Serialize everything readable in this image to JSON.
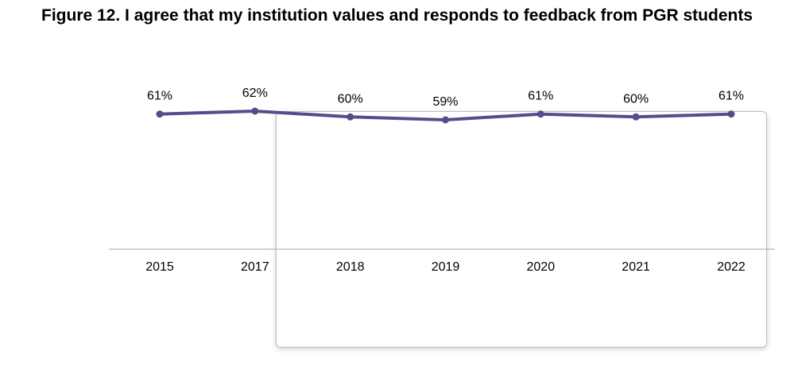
{
  "title": "Figure 12. I agree that my institution values and responds to feedback from PGR students",
  "colors": {
    "series_line": "#5b4a8b",
    "axis_line": "#a6a6a6",
    "text": "#000000"
  },
  "chart_data": {
    "type": "line",
    "title": "Figure 12. I agree that my institution values and responds to feedback from PGR students",
    "xlabel": "",
    "ylabel": "",
    "ylim": [
      0,
      100
    ],
    "grid": false,
    "legend": "none",
    "categories": [
      "2015",
      "2017",
      "2018",
      "2019",
      "2020",
      "2021",
      "2022"
    ],
    "series": [
      {
        "values": [
          61,
          62,
          60,
          59,
          61,
          60,
          61
        ],
        "labels": [
          "61%",
          "62%",
          "60%",
          "59%",
          "61%",
          "60%",
          "61%"
        ]
      }
    ]
  }
}
